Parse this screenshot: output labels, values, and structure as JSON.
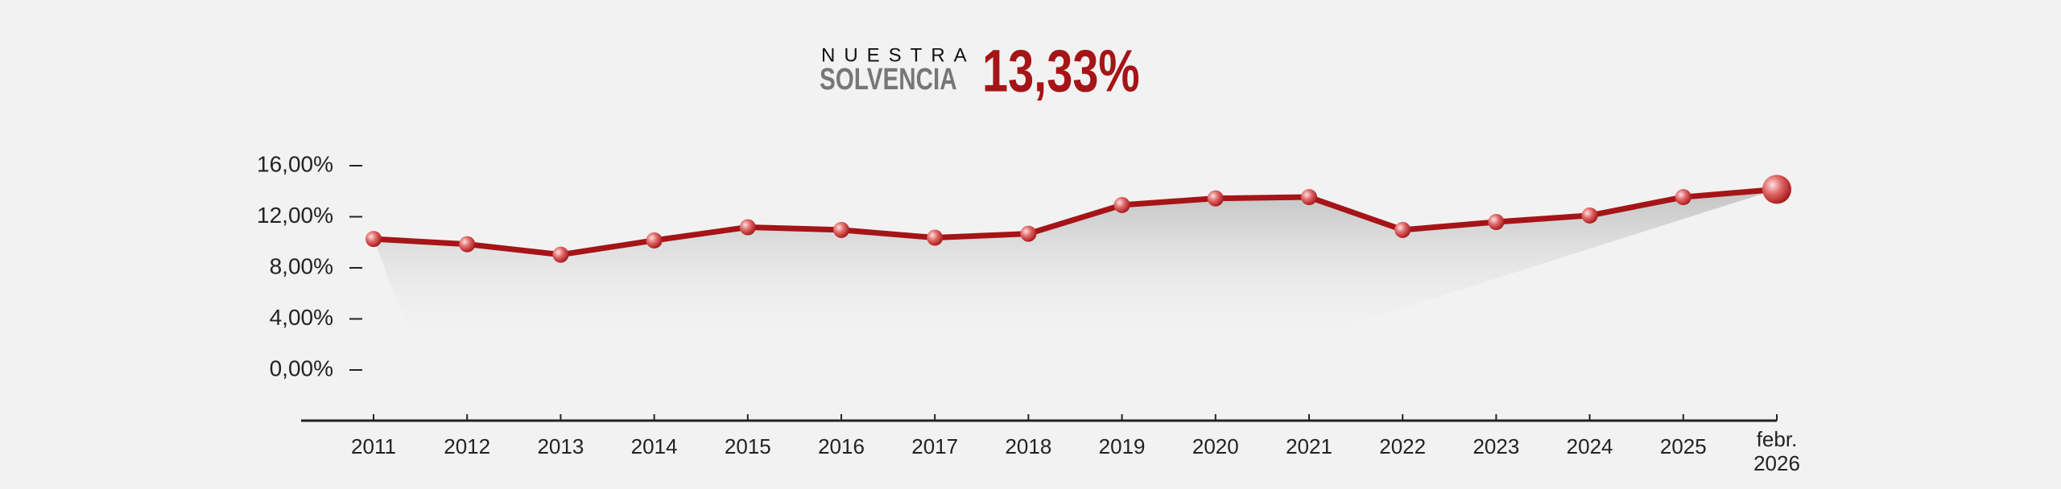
{
  "chart_data": {
    "type": "line",
    "title_small": "NUESTRA",
    "title_word": "SOLVENCIA",
    "title_value": "13,33%",
    "categories": [
      "2011",
      "2012",
      "2013",
      "2014",
      "2015",
      "2016",
      "2017",
      "2018",
      "2019",
      "2020",
      "2021",
      "2022",
      "2023",
      "2024",
      "2025",
      "febr. 2026"
    ],
    "series": [
      {
        "name": "Solvencia",
        "color": "#a51417",
        "values": [
          10.26,
          9.85,
          9.03,
          10.15,
          11.18,
          10.97,
          10.36,
          10.67,
          12.92,
          13.44,
          13.54,
          10.97,
          11.59,
          12.1,
          13.54,
          14.15
        ]
      }
    ],
    "ylim": [
      0,
      16
    ],
    "yticks": [
      {
        "value": 0,
        "label": "0,00%"
      },
      {
        "value": 4,
        "label": "4,00%"
      },
      {
        "value": 8,
        "label": "8,00%"
      },
      {
        "value": 12,
        "label": "12,00%"
      },
      {
        "value": 16,
        "label": "16,00%"
      }
    ]
  }
}
